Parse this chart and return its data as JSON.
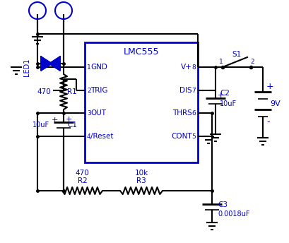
{
  "bg_color": "#ffffff",
  "lc": "#0000cc",
  "lc_wire": "#000000",
  "figsize": [
    4.1,
    3.44
  ],
  "dpi": 100,
  "title": "LMC555",
  "pin_labels_left": [
    "GND",
    "TRIG",
    "OUT",
    "/Reset"
  ],
  "pin_labels_right": [
    "V+",
    "DIS",
    "THRS",
    "CONT"
  ],
  "pin_nums_left": [
    "1",
    "2",
    "3",
    "4"
  ],
  "pin_nums_right": [
    "8",
    "7",
    "6",
    "5"
  ]
}
